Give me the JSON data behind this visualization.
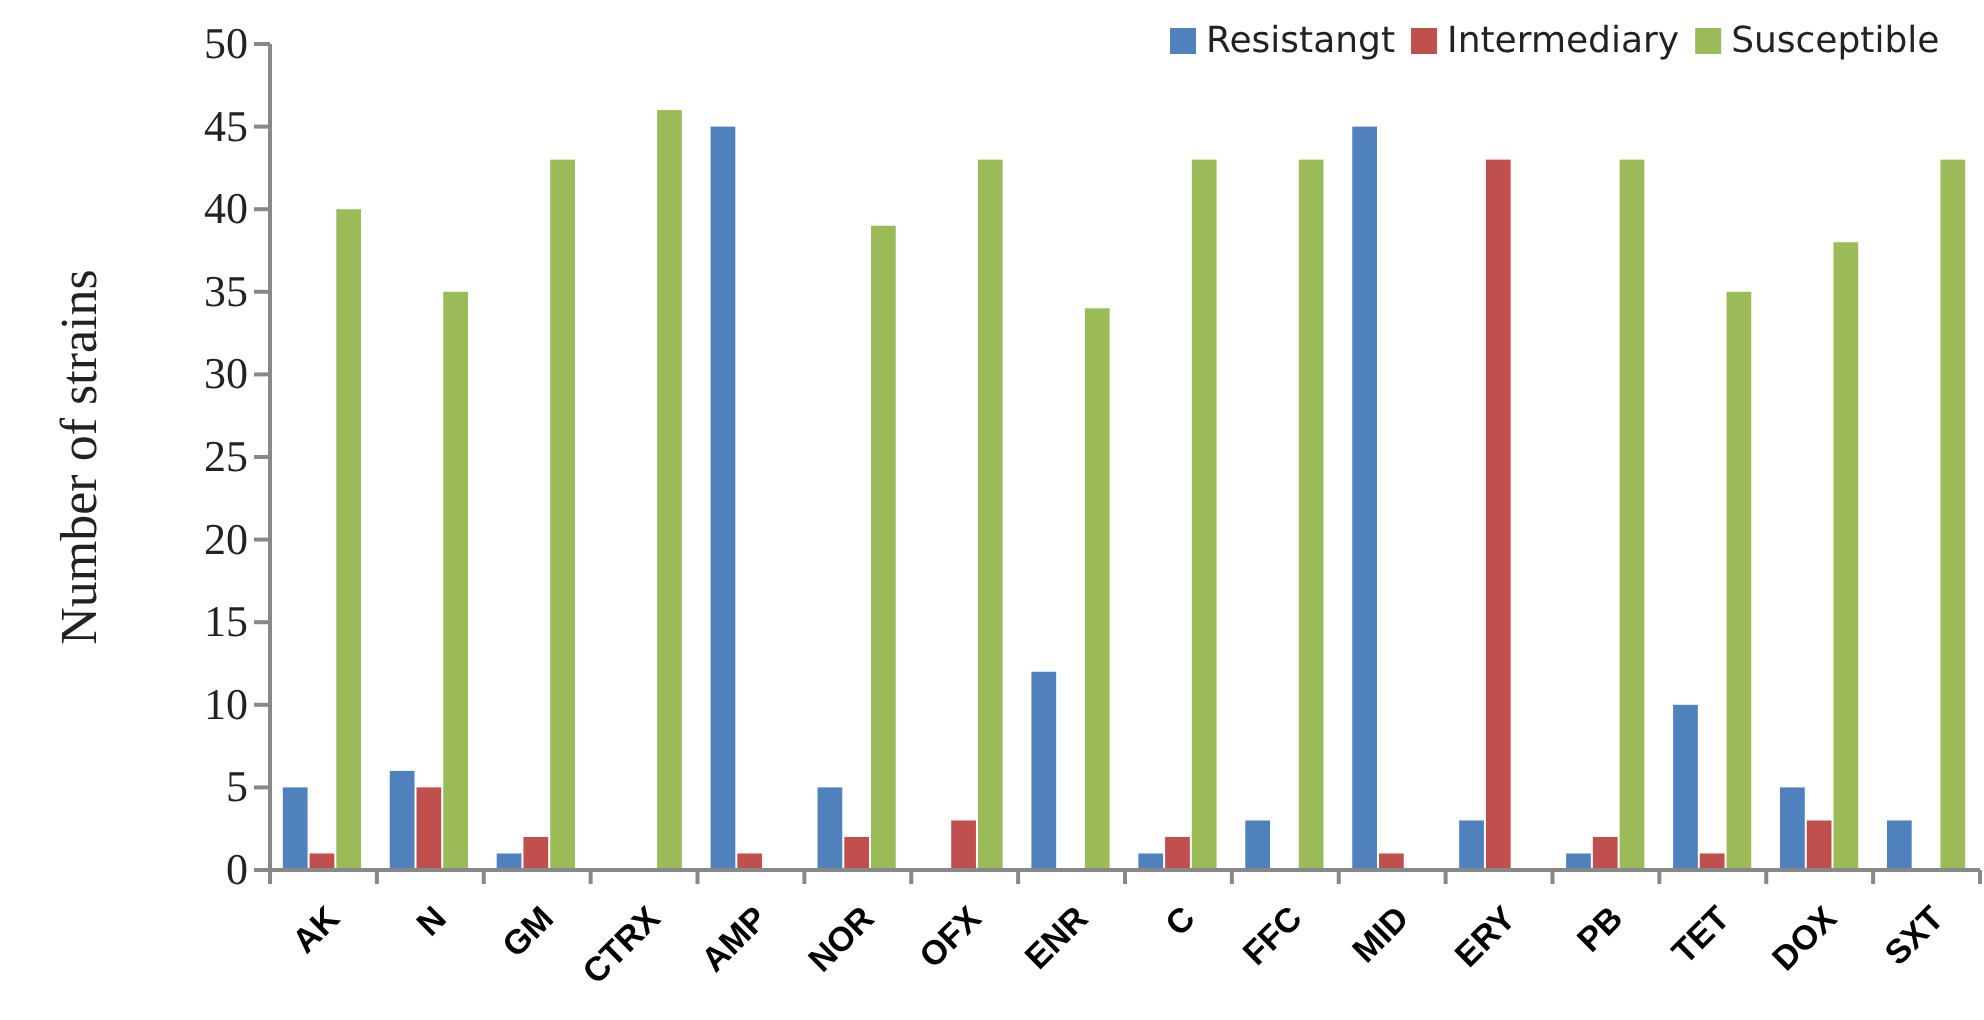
{
  "chart_data": {
    "type": "bar",
    "ylabel": "Number of strains",
    "categories": [
      "AK",
      "N",
      "GM",
      "CTRX",
      "AMP",
      "NOR",
      "OFX",
      "ENR",
      "C",
      "FFC",
      "MID",
      "ERY",
      "PB",
      "TET",
      "DOX",
      "SXT"
    ],
    "series": [
      {
        "name": "Resistangt",
        "color": "#4f81bd",
        "values": [
          5,
          6,
          1,
          0,
          45,
          5,
          0,
          12,
          1,
          3,
          45,
          3,
          1,
          10,
          5,
          3
        ]
      },
      {
        "name": "Intermediary",
        "color": "#c0504d",
        "values": [
          1,
          5,
          2,
          0,
          1,
          2,
          3,
          0,
          2,
          0,
          1,
          43,
          2,
          1,
          3,
          0
        ]
      },
      {
        "name": "Susceptible",
        "color": "#9bbb59",
        "values": [
          40,
          35,
          43,
          46,
          0,
          39,
          43,
          34,
          43,
          43,
          0,
          0,
          43,
          35,
          38,
          43
        ]
      }
    ],
    "ylim": [
      0,
      50
    ],
    "yticks": [
      0,
      5,
      10,
      15,
      20,
      25,
      30,
      35,
      40,
      45,
      50
    ],
    "grid": false,
    "legend": "top right"
  }
}
